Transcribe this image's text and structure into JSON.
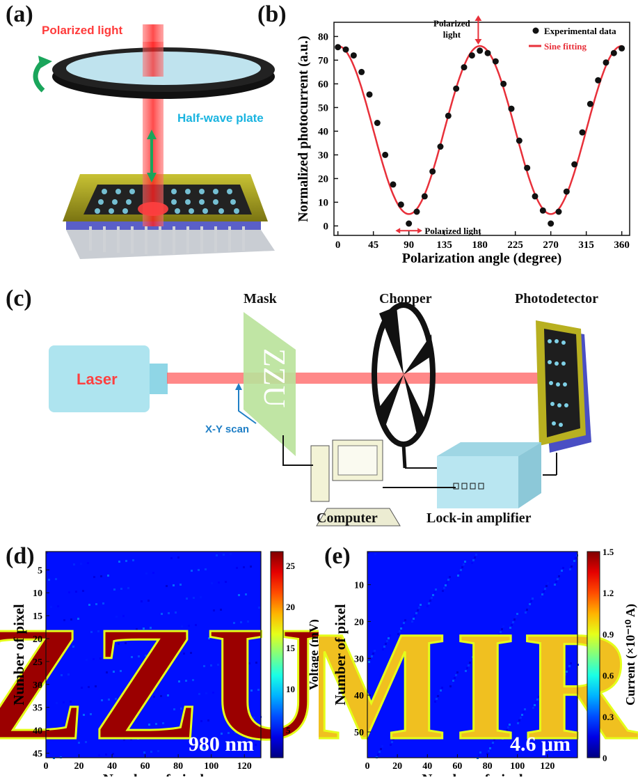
{
  "panels": {
    "a": {
      "label": "(a)",
      "polarized_light": "Polarized light",
      "half_wave_plate": "Half-wave plate",
      "colors": {
        "beam": "#ff3b3b",
        "plate_rim": "#111111",
        "plate_glass": "#bfe3ee",
        "arrow_green": "#1aa55b",
        "device_frame": "#b8b020"
      }
    },
    "b": {
      "label": "(b)",
      "annotation_top": "Polarized light",
      "annotation_bottom": "Polarized light"
    },
    "c": {
      "label": "(c)",
      "laser": "Laser",
      "mask": "Mask",
      "mask_text": "ZZU",
      "chopper": "Chopper",
      "photodetector": "Photodetector",
      "xy_scan": "X-Y scan",
      "computer": "Computer",
      "lockin": "Lock-in amplifier",
      "colors": {
        "laser_body": "#aee4ef",
        "laser_text": "#ff4040",
        "mask": "#b9e29a",
        "lockin": "#b9e6f1",
        "xy_scan": "#1f7fc6"
      }
    },
    "d": {
      "label": "(d)",
      "wavelength": "980 nm",
      "colorbar_label": "Voltage (mV)",
      "colorbar_ticks": [
        "25",
        "20",
        "15",
        "10",
        "5"
      ]
    },
    "e": {
      "label": "(e)",
      "wavelength": "4.6 μm",
      "colorbar_label": "Current (×10⁻¹⁰ A)",
      "colorbar_ticks": [
        "1.5",
        "1.2",
        "0.9",
        "0.6",
        "0.3",
        "0"
      ]
    }
  },
  "chart_data": [
    {
      "type": "scatter",
      "panel": "b",
      "xlabel": "Polarization angle (degree)",
      "ylabel": "Normalized photocurrent (a.u.)",
      "xlim": [
        -5,
        370
      ],
      "ylim": [
        -4,
        86
      ],
      "xticks": [
        0,
        45,
        90,
        135,
        180,
        225,
        270,
        315,
        360
      ],
      "yticks": [
        0,
        10,
        20,
        30,
        40,
        50,
        60,
        70,
        80
      ],
      "series": [
        {
          "name": "Experimental data",
          "marker": "sphere",
          "x": [
            0,
            10,
            20,
            30,
            40,
            50,
            60,
            70,
            80,
            90,
            100,
            110,
            120,
            130,
            140,
            150,
            160,
            170,
            180,
            190,
            200,
            210,
            220,
            230,
            240,
            250,
            260,
            270,
            280,
            290,
            300,
            310,
            320,
            330,
            340,
            350,
            360
          ],
          "y": [
            75.5,
            74.5,
            72,
            65,
            55.5,
            43.5,
            30,
            17.5,
            9,
            1,
            6,
            12.5,
            23,
            33.5,
            46.5,
            58,
            67,
            72,
            74,
            73,
            69.5,
            60,
            49.5,
            36,
            24.5,
            12.5,
            6.5,
            1,
            6,
            14.5,
            26,
            39.5,
            51.5,
            61.5,
            69,
            73,
            75
          ]
        },
        {
          "name": "Sine fitting",
          "color": "#e8303a",
          "type": "line",
          "amplitude": 35.5,
          "offset": 40.5,
          "period_deg": 180,
          "phase_deg": 0
        }
      ]
    },
    {
      "type": "heatmap",
      "panel": "d",
      "xlabel": "Number of pixel",
      "ylabel": "Number of pixel",
      "xlim": [
        0,
        130
      ],
      "ylim": [
        46,
        1
      ],
      "xticks": [
        0,
        20,
        40,
        60,
        80,
        100,
        120
      ],
      "yticks": [
        5,
        10,
        15,
        20,
        25,
        30,
        35,
        40,
        45
      ],
      "zlim": [
        0,
        27
      ],
      "zlabel": "Voltage (mV)",
      "pattern_text": "ZZU"
    },
    {
      "type": "heatmap",
      "panel": "e",
      "xlabel": "Number of pixel",
      "ylabel": "Number of pixel",
      "xlim": [
        0,
        140
      ],
      "ylim": [
        57,
        1
      ],
      "xticks": [
        0,
        20,
        40,
        60,
        80,
        100,
        120
      ],
      "yticks": [
        10,
        20,
        30,
        40,
        50
      ],
      "zlim": [
        0,
        1.5
      ],
      "zlabel": "Current (×10⁻¹⁰ A)",
      "pattern_text": "MIR"
    }
  ]
}
